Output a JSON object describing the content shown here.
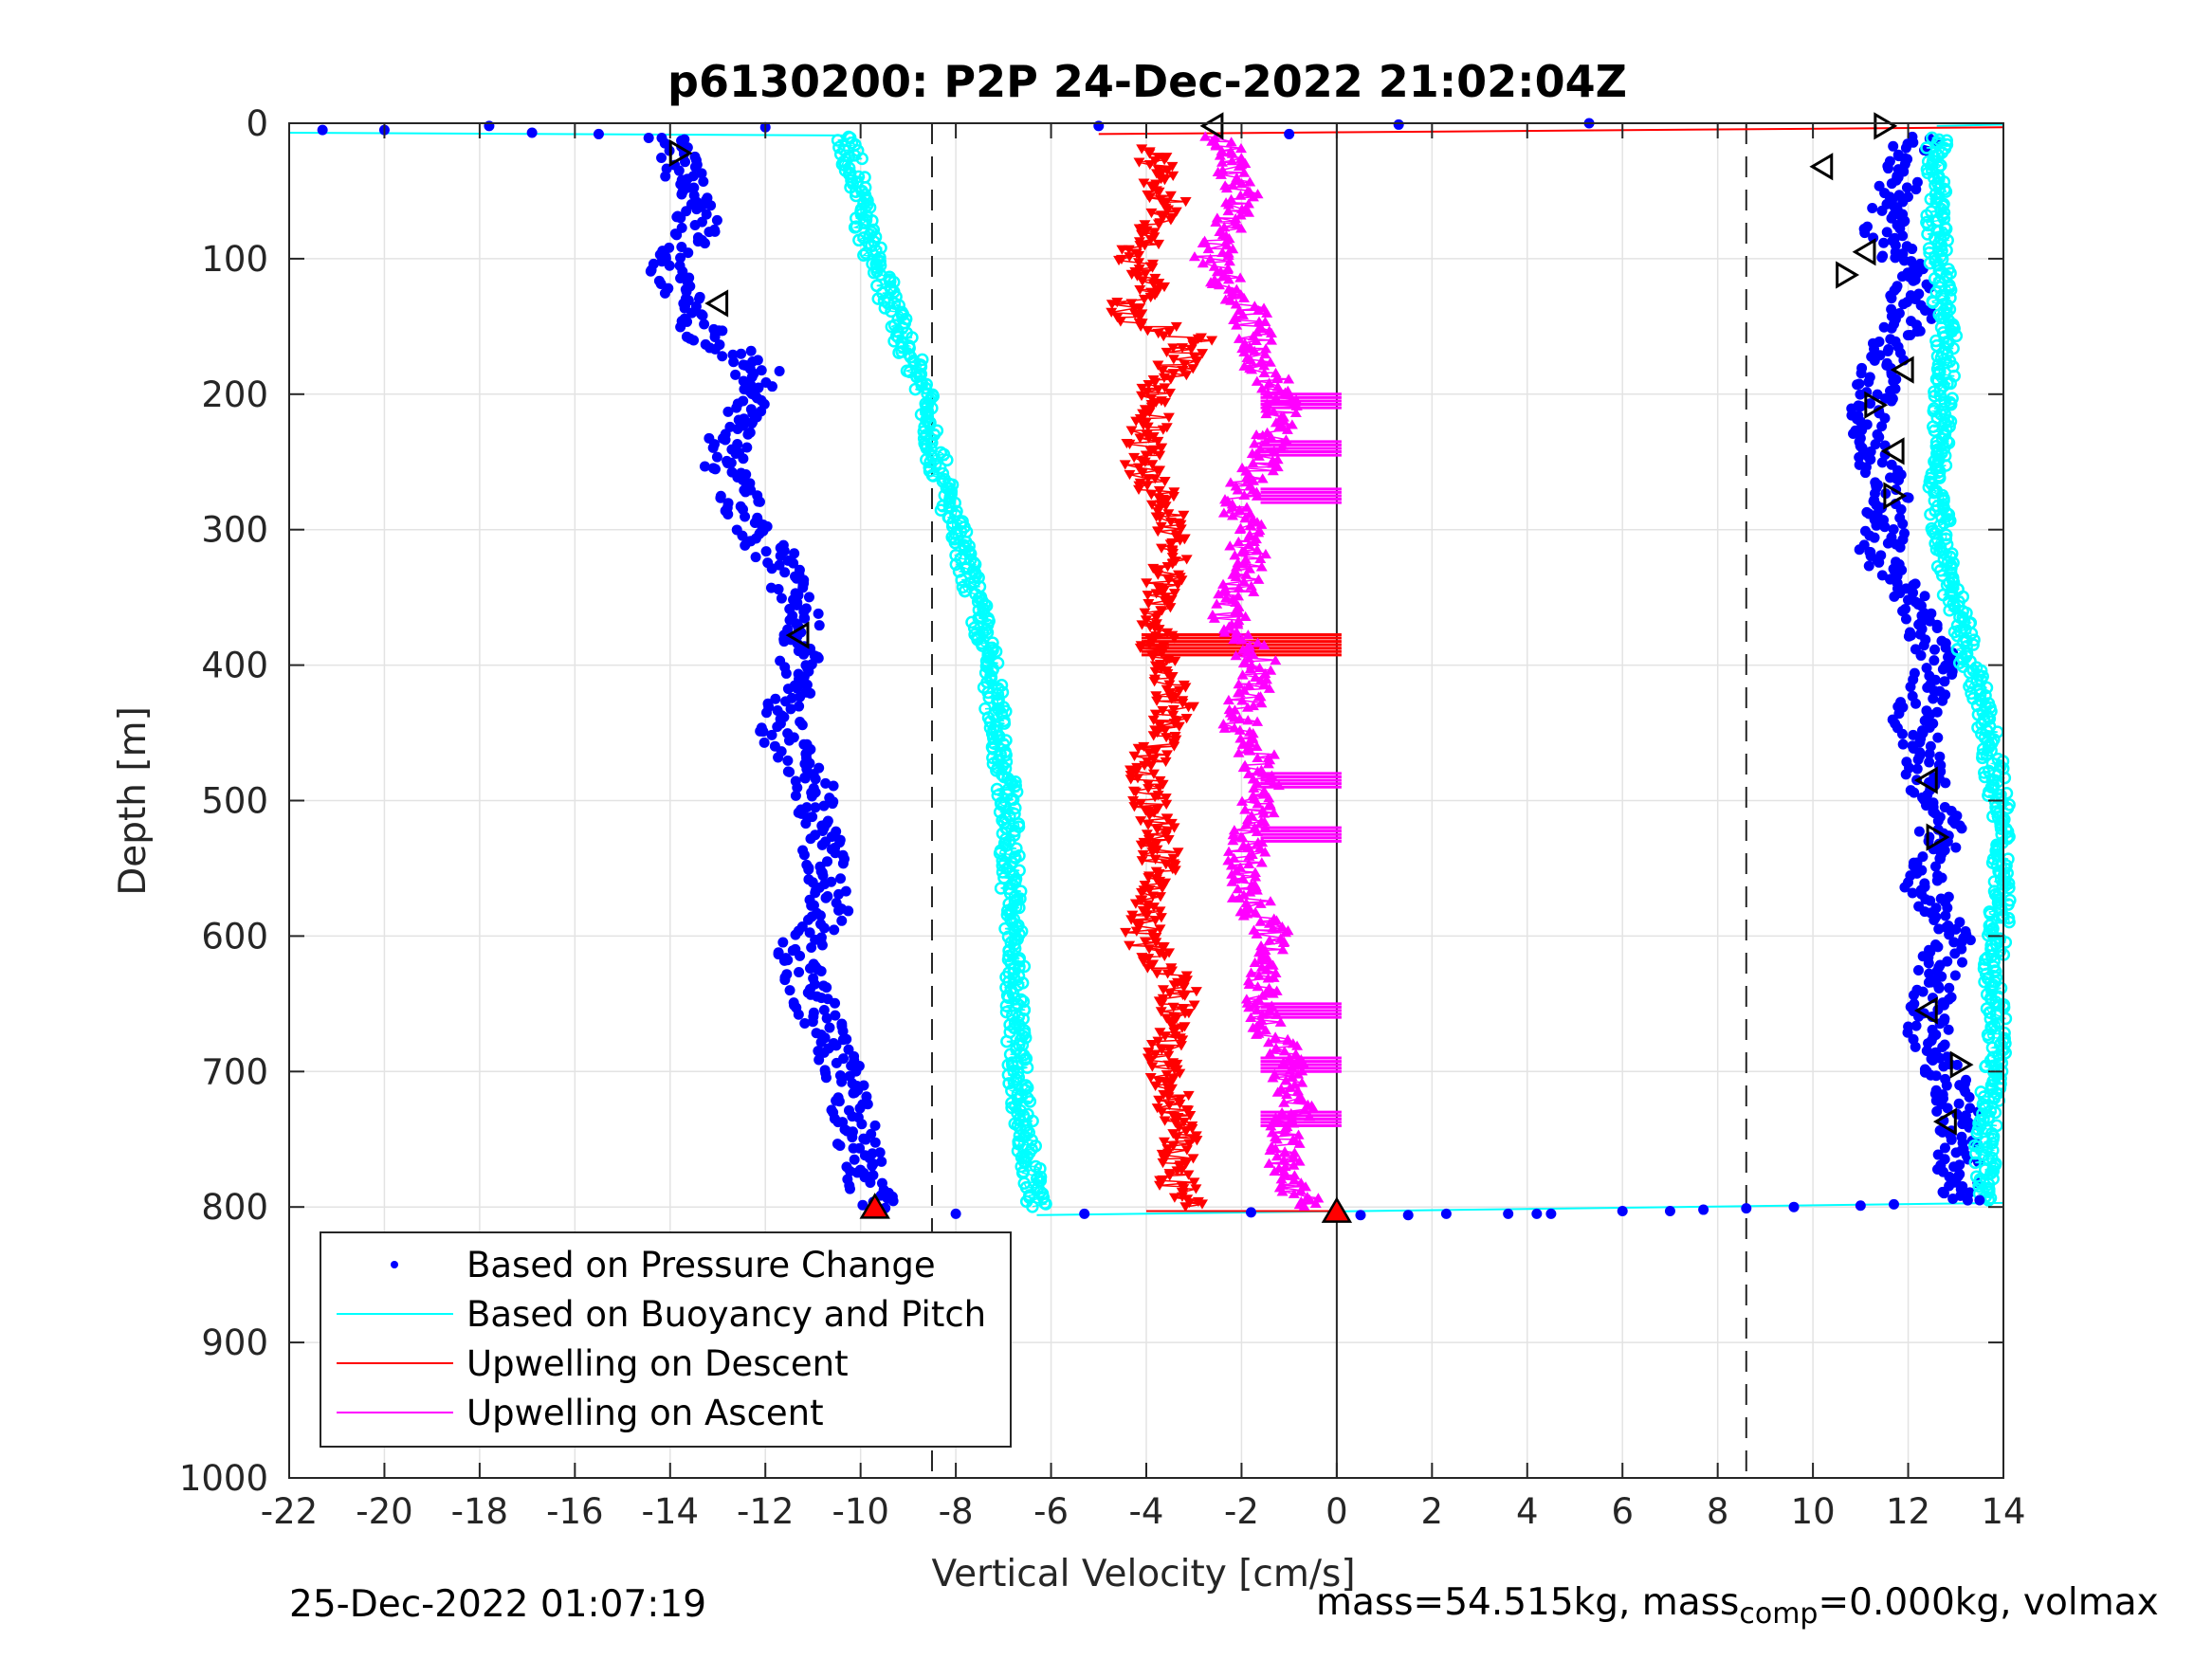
{
  "chart_data": {
    "type": "scatter",
    "title": "p6130200: P2P 24-Dec-2022 21:02:04Z",
    "xlabel": "Vertical Velocity [cm/s]",
    "ylabel": "Depth [m]",
    "xlim": [
      -22,
      14
    ],
    "ylim": [
      0,
      1000
    ],
    "y_reversed": true,
    "grid": true,
    "x_ticks": [
      "-22",
      "-20",
      "-18",
      "-16",
      "-14",
      "-12",
      "-10",
      "-8",
      "-6",
      "-4",
      "-2",
      "0",
      "2",
      "4",
      "6",
      "8",
      "10",
      "12",
      "14"
    ],
    "y_ticks": [
      "0",
      "100",
      "200",
      "300",
      "400",
      "500",
      "600",
      "700",
      "800",
      "900",
      "1000"
    ],
    "vertical_lines": [
      {
        "x": -8.5,
        "style": "dashed"
      },
      {
        "x": 8.6,
        "style": "dashed"
      },
      {
        "x": 0,
        "style": "solid"
      }
    ],
    "legend": {
      "position": "bottom-left",
      "entries": [
        "Based on Pressure Change",
        "Based on Buoyancy and Pitch",
        "Upwelling on Descent",
        "Upwelling on Ascent"
      ]
    },
    "colors": {
      "pressure": "#0000ff",
      "buoyancy": "#00ffff",
      "descent": "#ff0000",
      "ascent": "#ff00ff"
    },
    "series": [
      {
        "name": "Based on Pressure Change",
        "profile": "descent",
        "x": [
          -14.0,
          -13.7,
          -13.4,
          -14.1,
          -13.6,
          -13.2,
          -12.1,
          -12.6,
          -12.9,
          -12.4,
          -11.6,
          -11.2,
          -11.4,
          -11.7,
          -11.0,
          -10.8,
          -10.6,
          -11.3,
          -11.1,
          -10.6,
          -10.2,
          -10.0,
          -9.8,
          -9.7
        ],
        "y": [
          10,
          40,
          80,
          110,
          140,
          160,
          180,
          220,
          250,
          290,
          330,
          370,
          410,
          450,
          490,
          530,
          580,
          610,
          640,
          680,
          720,
          760,
          790,
          800
        ]
      },
      {
        "name": "Based on Pressure Change",
        "profile": "ascent",
        "x": [
          12.2,
          11.8,
          11.5,
          12.0,
          12.1,
          11.4,
          11.2,
          11.3,
          11.6,
          11.4,
          12.2,
          12.6,
          12.1,
          12.4,
          12.7,
          12.3,
          12.9,
          12.5,
          12.4,
          13.0,
          13.1,
          13.0,
          13.2
        ],
        "y": [
          10,
          40,
          80,
          110,
          140,
          180,
          210,
          240,
          280,
          320,
          360,
          400,
          440,
          480,
          520,
          560,
          600,
          640,
          680,
          720,
          750,
          780,
          795
        ]
      },
      {
        "name": "Based on Buoyancy and Pitch",
        "profile": "descent",
        "x": [
          -10.3,
          -10.1,
          -9.9,
          -9.5,
          -9.1,
          -8.6,
          -8.4,
          -8.0,
          -7.6,
          -7.3,
          -7.1,
          -6.9,
          -6.8,
          -6.7,
          -6.5,
          -6.3
        ],
        "y": [
          10,
          40,
          80,
          120,
          160,
          200,
          250,
          300,
          350,
          400,
          450,
          500,
          600,
          700,
          760,
          800
        ]
      },
      {
        "name": "Based on Buoyancy and Pitch",
        "profile": "ascent",
        "x": [
          12.6,
          12.6,
          12.8,
          12.7,
          12.6,
          12.9,
          13.3,
          13.7,
          13.9,
          14.0,
          13.8,
          13.9,
          13.7,
          13.6,
          13.7
        ],
        "y": [
          10,
          80,
          160,
          220,
          280,
          340,
          400,
          450,
          500,
          560,
          620,
          680,
          720,
          760,
          795
        ]
      },
      {
        "name": "Upwelling on Descent",
        "x": [
          -4.0,
          -3.5,
          -4.3,
          -3.8,
          -4.6,
          -3.0,
          -3.8,
          -4.1,
          -3.4,
          -3.6,
          -3.8,
          -3.4,
          -4.0,
          -3.7,
          -4.1,
          -3.3,
          -3.7,
          -3.3,
          -3.4,
          -3.2
        ],
        "y": [
          20,
          60,
          100,
          120,
          140,
          160,
          200,
          250,
          300,
          340,
          380,
          430,
          480,
          540,
          600,
          640,
          690,
          740,
          780,
          800
        ]
      },
      {
        "name": "Upwelling on Ascent",
        "x": [
          -2.4,
          -2.0,
          -2.6,
          -1.8,
          -1.6,
          -1.1,
          -1.4,
          -2.1,
          -1.8,
          -2.3,
          -1.6,
          -2.1,
          -1.5,
          -1.8,
          -2.0,
          -1.3,
          -1.6,
          -1.1,
          -0.8,
          -1.2,
          -0.9,
          -0.3
        ],
        "y": [
          10,
          50,
          100,
          140,
          180,
          200,
          240,
          280,
          320,
          360,
          400,
          440,
          480,
          520,
          560,
          600,
          650,
          690,
          720,
          760,
          790,
          800
        ]
      }
    ],
    "surface_points": {
      "pressure_x": [
        -21.3,
        -20.0,
        -17.8,
        -16.9,
        -15.5,
        -13.7,
        -12.0,
        -5.0,
        -1.0,
        1.3,
        5.3
      ],
      "pressure_y": [
        5,
        5,
        2,
        7,
        8,
        12,
        3,
        2,
        8,
        1,
        0
      ]
    },
    "bottom_points": {
      "pressure_x": [
        -8.0,
        -5.3,
        -1.8,
        0.5,
        1.5,
        2.3,
        3.6,
        4.2,
        4.5,
        6.0,
        7.0,
        7.7,
        8.6,
        9.6,
        11.0,
        11.7,
        13.5
      ],
      "pressure_y": [
        805,
        805,
        804,
        806,
        806,
        805,
        805,
        805,
        805,
        803,
        803,
        802,
        801,
        800,
        799,
        798,
        795
      ]
    },
    "horizontal_spikes": {
      "descent_y": [
        385
      ],
      "ascent_y": [
        205,
        240,
        275,
        485,
        525,
        655,
        695,
        735
      ]
    },
    "markers": {
      "ascent_triangles": [
        {
          "x": -9.7,
          "y": 800
        },
        {
          "x": 0.0,
          "y": 803
        }
      ],
      "stall_markers": [
        {
          "x": -13.8,
          "y": 22,
          "dir": "right"
        },
        {
          "x": -13.0,
          "y": 133,
          "dir": "left"
        },
        {
          "x": -11.3,
          "y": 378,
          "dir": "left"
        },
        {
          "x": -2.6,
          "y": 2,
          "dir": "left"
        },
        {
          "x": 11.5,
          "y": 2,
          "dir": "right"
        },
        {
          "x": 10.2,
          "y": 32,
          "dir": "left"
        },
        {
          "x": 11.1,
          "y": 95,
          "dir": "left"
        },
        {
          "x": 10.7,
          "y": 112,
          "dir": "right"
        },
        {
          "x": 11.9,
          "y": 182,
          "dir": "left"
        },
        {
          "x": 11.3,
          "y": 208,
          "dir": "right"
        },
        {
          "x": 11.7,
          "y": 242,
          "dir": "left"
        },
        {
          "x": 11.7,
          "y": 275,
          "dir": "right"
        },
        {
          "x": 12.4,
          "y": 485,
          "dir": "left"
        },
        {
          "x": 12.6,
          "y": 527,
          "dir": "right"
        },
        {
          "x": 12.4,
          "y": 655,
          "dir": "left"
        },
        {
          "x": 13.1,
          "y": 695,
          "dir": "right"
        },
        {
          "x": 12.8,
          "y": 737,
          "dir": "left"
        }
      ]
    }
  },
  "footer": {
    "date": "25-Dec-2022 01:07:19",
    "mass_main": "mass=54.515kg, mass",
    "mass_sub": "comp",
    "mass_rest": "=0.000kg, volmax"
  }
}
